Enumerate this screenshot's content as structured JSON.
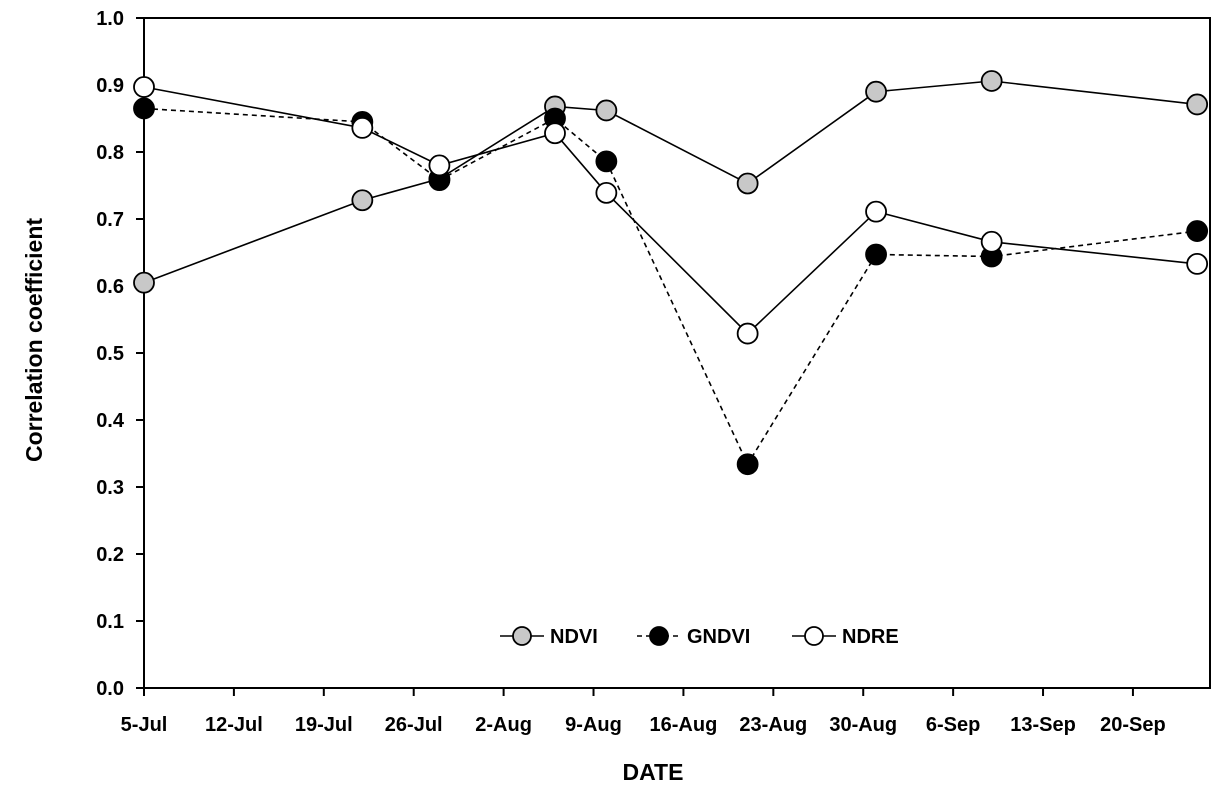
{
  "chart_data": {
    "type": "line",
    "title": "",
    "xlabel": "DATE",
    "ylabel": "Correlation coefficient",
    "ylim": [
      0.0,
      1.0
    ],
    "xlim": [
      "2015-07-05",
      "2015-09-26"
    ],
    "yticks": [
      "0.0",
      "0.1",
      "0.2",
      "0.3",
      "0.4",
      "0.5",
      "0.6",
      "0.7",
      "0.8",
      "0.9",
      "1.0"
    ],
    "xticks": [
      {
        "date": "2015-07-05",
        "label": "5-Jul"
      },
      {
        "date": "2015-07-12",
        "label": "12-Jul"
      },
      {
        "date": "2015-07-19",
        "label": "19-Jul"
      },
      {
        "date": "2015-07-26",
        "label": "26-Jul"
      },
      {
        "date": "2015-08-02",
        "label": "2-Aug"
      },
      {
        "date": "2015-08-09",
        "label": "9-Aug"
      },
      {
        "date": "2015-08-16",
        "label": "16-Aug"
      },
      {
        "date": "2015-08-23",
        "label": "23-Aug"
      },
      {
        "date": "2015-08-30",
        "label": "30-Aug"
      },
      {
        "date": "2015-09-06",
        "label": "6-Sep"
      },
      {
        "date": "2015-09-13",
        "label": "13-Sep"
      },
      {
        "date": "2015-09-20",
        "label": "20-Sep"
      }
    ],
    "grid": false,
    "legend_position": "bottom-center",
    "series": [
      {
        "name": "NDVI",
        "marker_fill": "#c8c8c8",
        "line_style": "solid",
        "points": [
          {
            "x": "2015-07-05",
            "y": 0.605
          },
          {
            "x": "2015-07-22",
            "y": 0.728
          },
          {
            "x": "2015-07-28",
            "y": 0.76
          },
          {
            "x": "2015-08-06",
            "y": 0.868
          },
          {
            "x": "2015-08-10",
            "y": 0.862
          },
          {
            "x": "2015-08-21",
            "y": 0.753
          },
          {
            "x": "2015-08-31",
            "y": 0.89
          },
          {
            "x": "2015-09-09",
            "y": 0.906
          },
          {
            "x": "2015-09-25",
            "y": 0.871
          }
        ]
      },
      {
        "name": "GNDVI",
        "marker_fill": "#000000",
        "line_style": "dashed",
        "points": [
          {
            "x": "2015-07-05",
            "y": 0.865
          },
          {
            "x": "2015-07-22",
            "y": 0.845
          },
          {
            "x": "2015-07-28",
            "y": 0.758
          },
          {
            "x": "2015-08-06",
            "y": 0.85
          },
          {
            "x": "2015-08-10",
            "y": 0.786
          },
          {
            "x": "2015-08-21",
            "y": 0.334
          },
          {
            "x": "2015-08-31",
            "y": 0.647
          },
          {
            "x": "2015-09-09",
            "y": 0.644
          },
          {
            "x": "2015-09-25",
            "y": 0.682
          }
        ]
      },
      {
        "name": "NDRE",
        "marker_fill": "#ffffff",
        "line_style": "solid",
        "points": [
          {
            "x": "2015-07-05",
            "y": 0.897
          },
          {
            "x": "2015-07-22",
            "y": 0.836
          },
          {
            "x": "2015-07-28",
            "y": 0.78
          },
          {
            "x": "2015-08-06",
            "y": 0.828
          },
          {
            "x": "2015-08-10",
            "y": 0.739
          },
          {
            "x": "2015-08-21",
            "y": 0.529
          },
          {
            "x": "2015-08-31",
            "y": 0.711
          },
          {
            "x": "2015-09-09",
            "y": 0.666
          },
          {
            "x": "2015-09-25",
            "y": 0.633
          }
        ]
      }
    ]
  }
}
